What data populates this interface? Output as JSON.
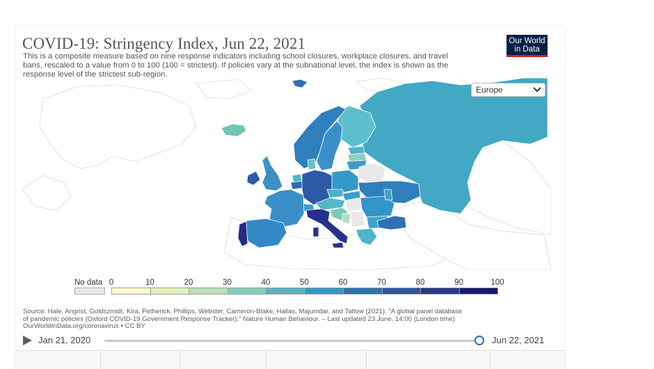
{
  "header": {
    "title": "COVID-19: Stringency Index, Jun 22, 2021",
    "subtitle": "This is a composite measure based on nine response indicators including school closures, workplace closures, and travel bans, rescaled to a value from 0 to 100 (100 = strictest). If policies vary at the subnational level, the index is shown as the response level of the strictest sub-region."
  },
  "logo": {
    "line1": "Our World",
    "line2": "in Data"
  },
  "region_select": {
    "value": "Europe",
    "icon": "chevron-down-icon"
  },
  "legend": {
    "no_data_label": "No data",
    "no_data_color": "#e8e8e8",
    "ticks": [
      "0",
      "10",
      "20",
      "30",
      "40",
      "50",
      "60",
      "70",
      "80",
      "90",
      "100"
    ],
    "colors": [
      "#fefbd0",
      "#e3f2b4",
      "#b9e2b4",
      "#86ceba",
      "#55b5c4",
      "#3299c6",
      "#2a74b4",
      "#2b54a4",
      "#283891",
      "#15196b"
    ]
  },
  "source": {
    "line1": "Source: Hale, Angrist, Goldszmidt, Kira, Petherick, Phillips, Webster, Cameron-Blake, Hallas, Majumdar, and Tatlow (2021). \"A global panel database",
    "line2": "of pandemic policies (Oxford COVID-19 Government Response Tracker).\" Nature Human Behaviour. – Last updated 23 June, 14:00 (London time)",
    "line3": "OurWorldInData.org/coronavirus • CC BY"
  },
  "timeline": {
    "start": "Jan 21, 2020",
    "end": "Jun 22, 2021",
    "position": 1.0
  }
}
